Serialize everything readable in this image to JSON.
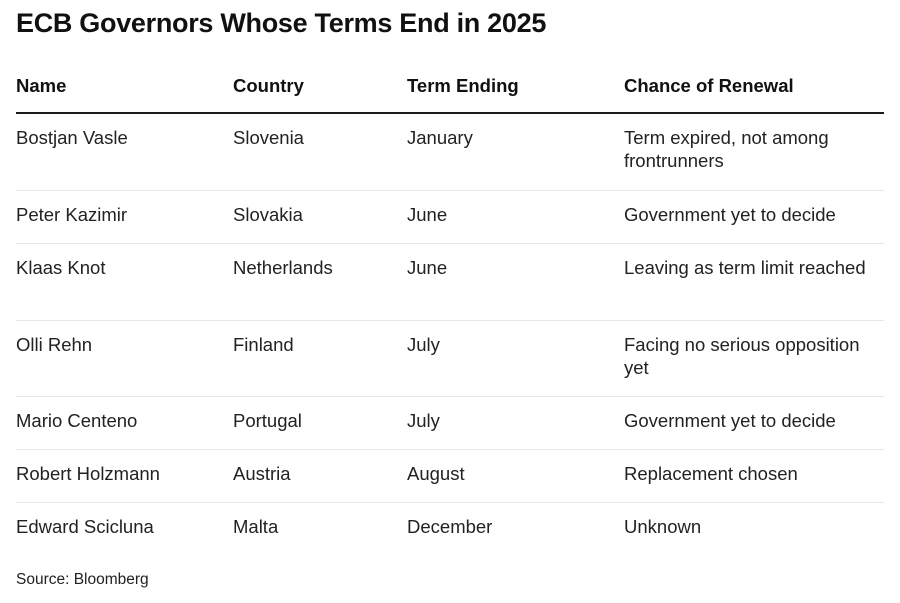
{
  "title": "ECB Governors Whose Terms End in 2025",
  "chart_data": {
    "type": "table",
    "title": "ECB Governors Whose Terms End in 2025",
    "columns": [
      "Name",
      "Country",
      "Term Ending",
      "Chance of Renewal"
    ],
    "rows": [
      [
        "Bostjan Vasle",
        "Slovenia",
        "January",
        "Term expired, not among frontrunners"
      ],
      [
        "Peter Kazimir",
        "Slovakia",
        "June",
        "Government yet to decide"
      ],
      [
        "Klaas Knot",
        "Netherlands",
        "June",
        "Leaving as term limit reached"
      ],
      [
        "Olli Rehn",
        "Finland",
        "July",
        "Facing no serious opposition yet"
      ],
      [
        "Mario Centeno",
        "Portugal",
        "July",
        "Government yet to decide"
      ],
      [
        "Robert Holzmann",
        "Austria",
        "August",
        "Replacement chosen"
      ],
      [
        "Edward Scicluna",
        "Malta",
        "December",
        "Unknown"
      ]
    ]
  },
  "source": "Source: Bloomberg"
}
